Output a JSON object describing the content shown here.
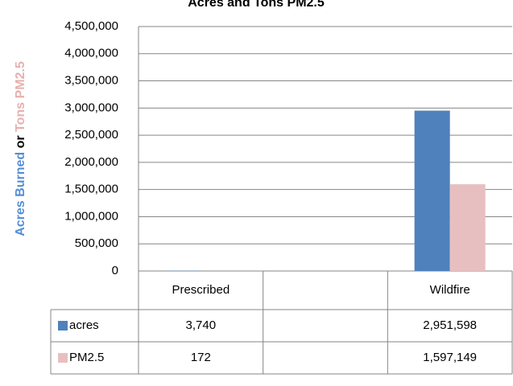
{
  "chart_data": {
    "type": "bar",
    "title": "Acres and Tons PM2.5",
    "y_label_parts": [
      {
        "text": "Acres Burned",
        "color": "#558ed5"
      },
      {
        "text": " or ",
        "color": "#000000"
      },
      {
        "text": "Tons PM2.5",
        "color": "#e6b0ae"
      }
    ],
    "categories": [
      "Prescribed",
      null,
      "Wildfire"
    ],
    "series": [
      {
        "name": "acres",
        "color": "#4f81bd",
        "values": [
          3740,
          null,
          2951598
        ],
        "value_labels": [
          "3,740",
          null,
          "2,951,598"
        ]
      },
      {
        "name": "PM2.5",
        "color": "#e8bfc0",
        "values": [
          172,
          null,
          1597149
        ],
        "value_labels": [
          "172",
          null,
          "1,597,149"
        ]
      }
    ],
    "ylim": [
      0,
      4500000
    ],
    "yticks": [
      0,
      {
        "value": 500000,
        "label": "500,000"
      },
      {
        "value": 1000000,
        "label": "1,000,000"
      },
      {
        "value": 1500000,
        "label": "1,500,000"
      },
      {
        "value": 2000000,
        "label": "2,000,000"
      },
      {
        "value": 2500000,
        "label": "2,500,000"
      },
      {
        "value": 3000000,
        "label": "3,000,000"
      },
      {
        "value": 3500000,
        "label": "3,500,000"
      },
      {
        "value": 4000000,
        "label": "4,000,000"
      },
      {
        "value": 4500000,
        "label": "4,500,000"
      }
    ],
    "grid": true,
    "data_table": true
  }
}
